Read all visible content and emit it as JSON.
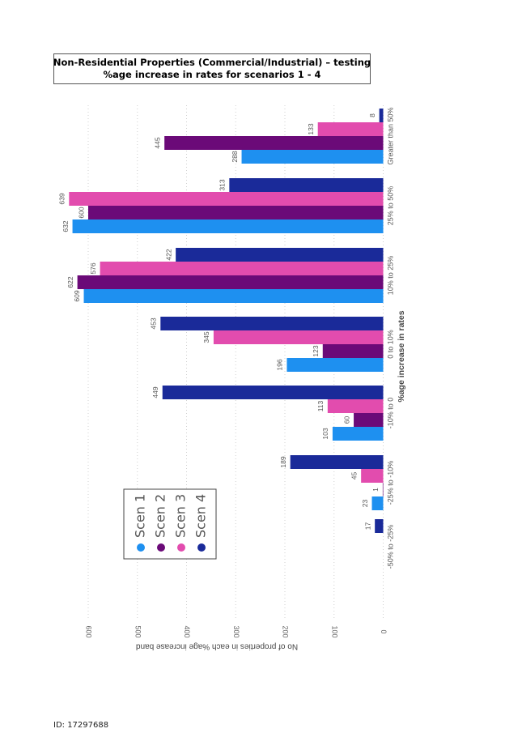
{
  "title": {
    "line1": "Non-Residential Properties (Commercial/Industrial) – testing",
    "line2": "%age increase in rates for scenarios 1 - 4"
  },
  "footer": {
    "id_label": "ID: 17297688"
  },
  "chart_data": {
    "type": "bar",
    "orientation": "horizontal (page rotated 90° clockwise)",
    "xlabel": "%age increase in rates",
    "ylabel": "No of properties in each %age increase band",
    "categories": [
      "-50% to -25%",
      "-25% to -10%",
      "-10% to 0",
      "0 to 10%",
      "10% to 25%",
      "25% to 50%",
      "Greater than 50%"
    ],
    "series": [
      {
        "name": "Scen 1",
        "color": "#1e90f0",
        "values": [
          null,
          23,
          103,
          196,
          609,
          632,
          288
        ],
        "labels": [
          "",
          "23",
          "103",
          "196",
          "609",
          "632",
          "288"
        ]
      },
      {
        "name": "Scen 2",
        "color": "#6b0a78",
        "values": [
          null,
          1,
          60,
          123,
          622,
          600,
          445
        ],
        "labels": [
          "",
          "1",
          "60",
          "123",
          "622",
          "600",
          "445"
        ]
      },
      {
        "name": "Scen 3",
        "color": "#e24cae",
        "values": [
          null,
          45,
          113,
          345,
          576,
          639,
          133
        ],
        "labels": [
          "",
          "45",
          "113",
          "345",
          "576",
          "639",
          "133"
        ]
      },
      {
        "name": "Scen 4",
        "color": "#1a2a99",
        "values": [
          17,
          189,
          449,
          453,
          422,
          313,
          8
        ],
        "labels": [
          "17",
          "189",
          "449",
          "453",
          "422",
          "313",
          "8"
        ]
      }
    ],
    "ylim": [
      0,
      640
    ],
    "yticks": [
      "0",
      "100",
      "200",
      "300",
      "400",
      "500",
      "600"
    ],
    "grid": "dotted",
    "legend": "inside, bottom-left"
  }
}
